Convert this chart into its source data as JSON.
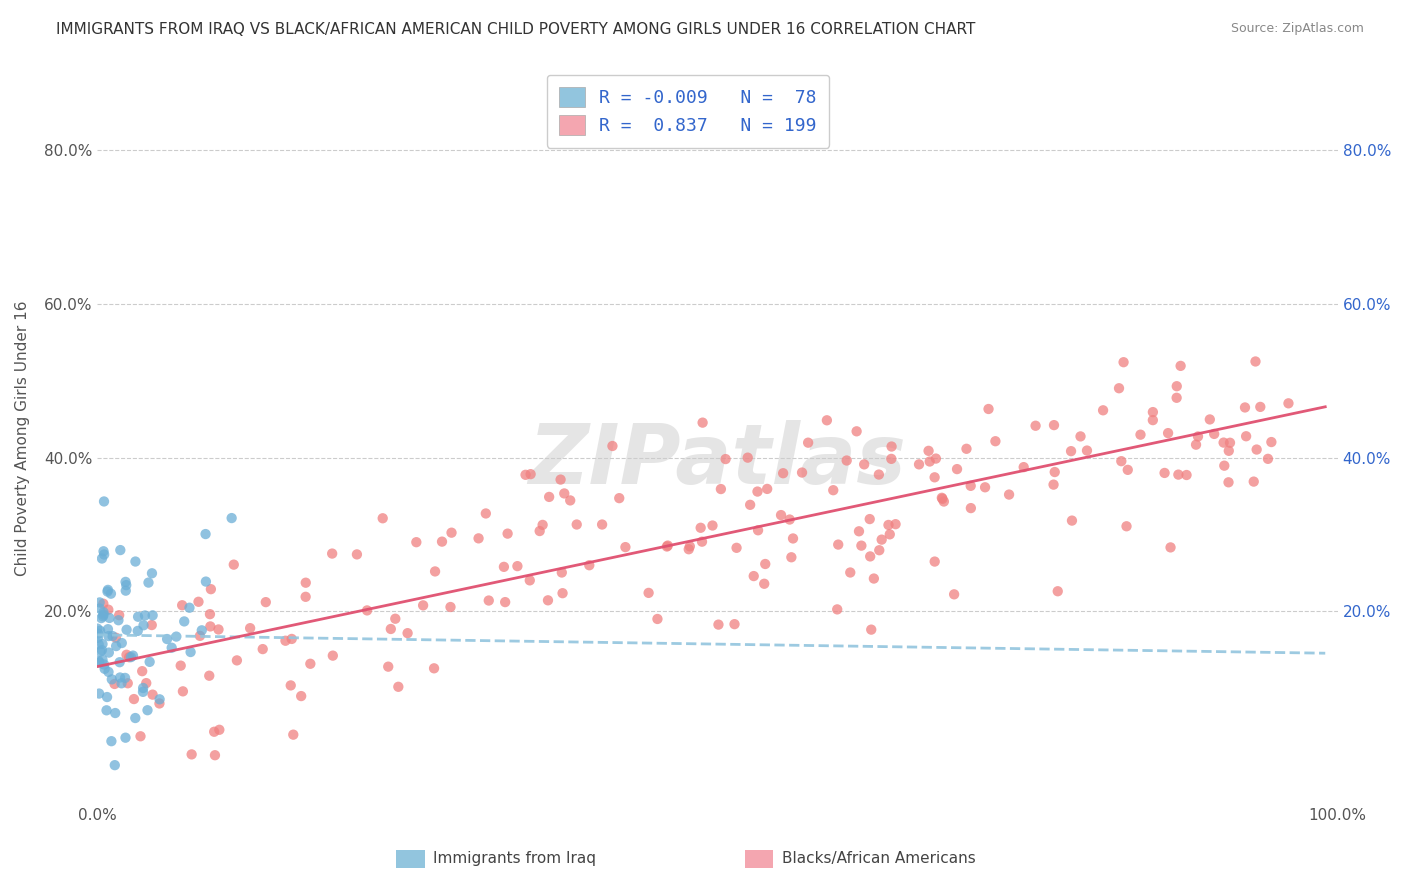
{
  "title": "IMMIGRANTS FROM IRAQ VS BLACK/AFRICAN AMERICAN CHILD POVERTY AMONG GIRLS UNDER 16 CORRELATION CHART",
  "source": "Source: ZipAtlas.com",
  "ylabel": "Child Poverty Among Girls Under 16",
  "ytick_vals": [
    0.0,
    0.2,
    0.4,
    0.6,
    0.8
  ],
  "ytick_labels": [
    "",
    "20.0%",
    "40.0%",
    "60.0%",
    "80.0%"
  ],
  "color_iraq": "#92c5de",
  "color_iraq_scatter": "#6baed6",
  "color_black": "#f4a6b0",
  "color_black_scatter": "#f08080",
  "color_black_line": "#e05070",
  "color_iraq_line": "#92c5de",
  "watermark": "ZIPatlas",
  "xlim": [
    0.0,
    1.0
  ],
  "ylim": [
    -0.05,
    0.9
  ],
  "background": "#ffffff",
  "grid_color": "#cccccc",
  "legend_text1": "R = -0.009   N =  78",
  "legend_text2": "R =  0.837   N = 199"
}
